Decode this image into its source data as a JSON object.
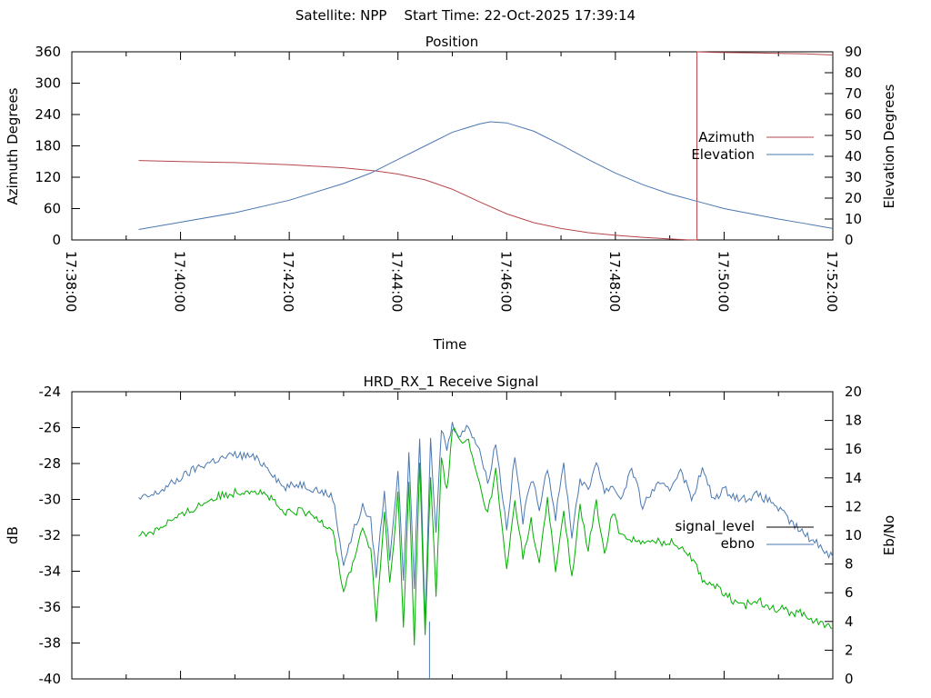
{
  "header": {
    "title": "Satellite: NPP    Start Time: 22-Oct-2025 17:39:14"
  },
  "chart_data": [
    {
      "type": "line",
      "title": "Position",
      "xlabel": "Time",
      "ylabel": "Azimuth Degrees",
      "y2label": "Elevation Degrees",
      "xlim": [
        0,
        14
      ],
      "x_base": "17:38:00",
      "x_unit": "minutes after 17:38:00",
      "xticks": [
        "17:38:00",
        "17:40:00",
        "17:42:00",
        "17:44:00",
        "17:46:00",
        "17:48:00",
        "17:50:00",
        "17:52:00"
      ],
      "xtick_values": [
        0,
        2,
        4,
        6,
        8,
        10,
        12,
        14
      ],
      "ylim": [
        0,
        360
      ],
      "yticks": [
        0,
        60,
        120,
        180,
        240,
        300,
        360
      ],
      "y2lim": [
        0,
        90
      ],
      "y2ticks": [
        0,
        10,
        20,
        30,
        40,
        50,
        60,
        70,
        80,
        90
      ],
      "grid": false,
      "legend": "right",
      "series": [
        {
          "name": "Azimuth",
          "axis": "y",
          "color": "#b8464b",
          "x": [
            1.23,
            2.0,
            3.0,
            4.0,
            5.0,
            5.6,
            6.0,
            6.5,
            7.0,
            7.5,
            8.0,
            8.5,
            9.0,
            9.5,
            10.0,
            10.5,
            11.0,
            11.3,
            11.5,
            11.8,
            12.5,
            13.0,
            13.5,
            14.0
          ],
          "y": [
            152,
            150,
            148,
            144,
            138,
            132,
            126,
            115,
            97,
            73,
            50,
            33,
            22,
            14,
            9,
            5,
            2,
            0.5,
            360,
            359,
            358,
            357,
            356,
            354
          ]
        },
        {
          "name": "Elevation",
          "axis": "y2",
          "color": "#4a78b0",
          "x": [
            1.23,
            2.0,
            3.0,
            4.0,
            5.0,
            5.5,
            6.0,
            6.5,
            7.0,
            7.5,
            7.7,
            8.0,
            8.5,
            9.0,
            9.5,
            10.0,
            10.5,
            11.0,
            11.5,
            12.0,
            12.5,
            13.0,
            13.5,
            14.0
          ],
          "y": [
            5,
            8.5,
            13,
            19,
            27,
            32,
            38.5,
            45,
            51.5,
            55.5,
            56.5,
            56,
            52,
            45.5,
            38.5,
            32,
            26.5,
            22,
            18.5,
            15,
            12.5,
            10,
            7.8,
            5.5
          ]
        }
      ]
    },
    {
      "type": "line",
      "title": "HRD_RX_1 Receive Signal",
      "xlabel": "",
      "ylabel": "dB",
      "y2label": "Eb/No",
      "xlim": [
        0,
        14
      ],
      "ylim": [
        -40,
        -24
      ],
      "yticks": [
        -40,
        -38,
        -36,
        -34,
        -32,
        -30,
        -28,
        -26,
        -24
      ],
      "y2lim": [
        0,
        20
      ],
      "y2ticks": [
        0,
        2,
        4,
        6,
        8,
        10,
        12,
        14,
        16,
        18,
        20
      ],
      "grid": false,
      "legend": "right",
      "series": [
        {
          "name": "signal_level",
          "axis": "y",
          "color": "#000000",
          "x": [],
          "y": []
        },
        {
          "name": "ebno",
          "axis": "y2",
          "color": "#4a78b0",
          "x": [
            1.23,
            1.5,
            1.8,
            2.0,
            2.3,
            2.6,
            3.0,
            3.3,
            3.6,
            3.9,
            4.2,
            4.5,
            4.8,
            5.0,
            5.2,
            5.35,
            5.5,
            5.6,
            5.75,
            5.85,
            6.0,
            6.1,
            6.2,
            6.3,
            6.4,
            6.5,
            6.6,
            6.7,
            6.8,
            6.9,
            7.0,
            7.15,
            7.3,
            7.5,
            7.65,
            7.8,
            8.0,
            8.15,
            8.3,
            8.45,
            8.6,
            8.75,
            8.9,
            9.05,
            9.2,
            9.35,
            9.5,
            9.65,
            9.8,
            9.95,
            10.1,
            10.3,
            10.5,
            10.75,
            11.0,
            11.2,
            11.4,
            11.6,
            11.8,
            12.0,
            12.3,
            12.6,
            12.9,
            13.2,
            13.5,
            13.7,
            13.85,
            14.0
          ],
          "y": [
            12.5,
            12.8,
            13.5,
            14,
            14.7,
            15.2,
            15.6,
            15.5,
            14.8,
            13.3,
            13.6,
            13.2,
            12.7,
            8.0,
            10.5,
            12.0,
            11.0,
            7.3,
            13.0,
            8.5,
            14.5,
            7.0,
            15.5,
            6.5,
            17.0,
            4.0,
            16.5,
            10.0,
            17.5,
            16.0,
            17.7,
            17.0,
            17.6,
            16.0,
            13.6,
            16.5,
            10.5,
            15.5,
            11.0,
            14.0,
            12.0,
            14.8,
            11.2,
            15.0,
            10.0,
            14.0,
            13.0,
            15.3,
            13.0,
            13.5,
            12.5,
            14.7,
            12.0,
            13.5,
            13.2,
            14.7,
            12.5,
            14.6,
            12.5,
            13.2,
            12.5,
            12.8,
            12.3,
            11.0,
            10.0,
            9.5,
            9.0,
            8.5
          ]
        },
        {
          "name": "signal_level (green trace)",
          "axis": "y2",
          "color": "#00b000",
          "x": [
            1.23,
            1.5,
            1.8,
            2.0,
            2.3,
            2.6,
            3.0,
            3.3,
            3.6,
            3.9,
            4.2,
            4.5,
            4.8,
            5.0,
            5.2,
            5.35,
            5.5,
            5.6,
            5.75,
            5.85,
            6.0,
            6.1,
            6.2,
            6.3,
            6.4,
            6.5,
            6.6,
            6.7,
            6.8,
            6.9,
            7.0,
            7.15,
            7.3,
            7.5,
            7.65,
            7.8,
            8.0,
            8.15,
            8.3,
            8.45,
            8.6,
            8.75,
            8.9,
            9.05,
            9.2,
            9.35,
            9.5,
            9.65,
            9.8,
            9.95,
            10.1,
            10.3,
            10.5,
            10.75,
            11.0,
            11.2,
            11.4,
            11.6,
            11.8,
            12.0,
            12.3,
            12.6,
            12.9,
            13.2,
            13.5,
            13.7,
            13.85,
            14.0
          ],
          "y": [
            10.0,
            10.3,
            11.0,
            11.3,
            12.0,
            12.6,
            13.0,
            13.2,
            12.8,
            11.5,
            11.7,
            11.2,
            10.5,
            6.0,
            8.5,
            10.5,
            9.0,
            4.0,
            11.5,
            6.5,
            13.0,
            3.5,
            14.0,
            2.5,
            15.0,
            3.0,
            14.0,
            6.0,
            15.5,
            13.0,
            17.5,
            16.5,
            16.5,
            13.5,
            11.5,
            14.5,
            7.5,
            12.5,
            8.5,
            11.0,
            8.0,
            12.5,
            7.5,
            11.8,
            7.0,
            12.0,
            9.0,
            12.3,
            8.5,
            11.7,
            10.0,
            9.8,
            9.4,
            9.6,
            9.5,
            9.3,
            8.5,
            7.0,
            6.5,
            6.0,
            5.0,
            5.5,
            5.0,
            4.7,
            4.5,
            4.0,
            3.7,
            3.5
          ]
        }
      ]
    }
  ]
}
